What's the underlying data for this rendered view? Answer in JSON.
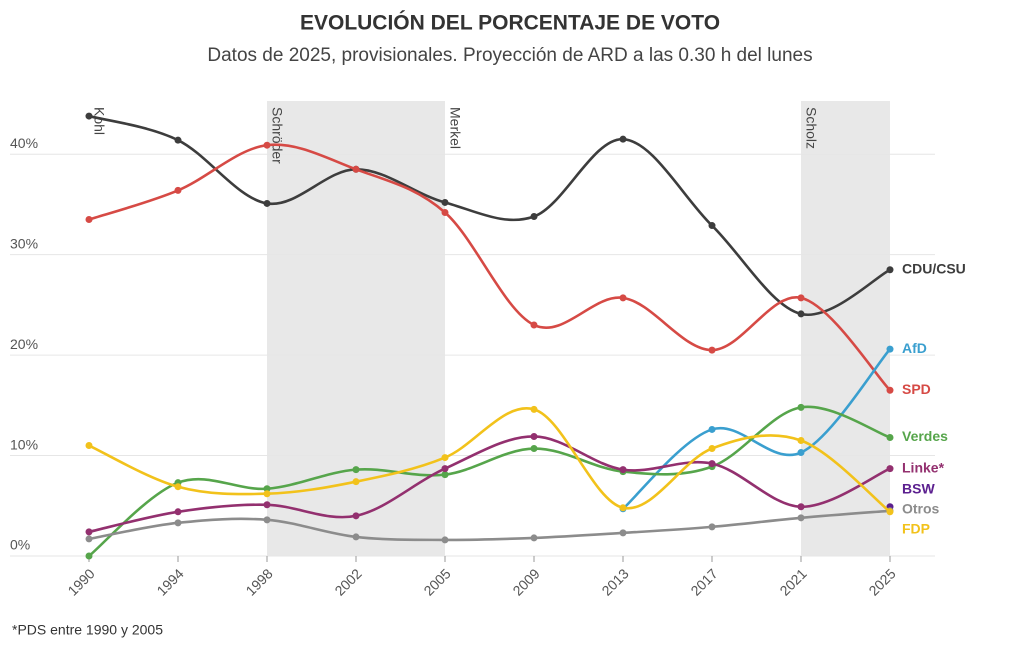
{
  "chart_data": {
    "type": "line",
    "title": "EVOLUCIÓN DEL PORCENTAJE DE VOTO",
    "subtitle": "Datos de 2025, provisionales. Proyección de ARD a las 0.30 h del lunes",
    "footnote": "*PDS entre 1990 y 2005",
    "categories": [
      "1990",
      "1994",
      "1998",
      "2002",
      "2005",
      "2009",
      "2013",
      "2017",
      "2021",
      "2025"
    ],
    "ylim": [
      0,
      45.3
    ],
    "yticks": [
      {
        "value": 0,
        "label": "0%"
      },
      {
        "value": 10,
        "label": "10%"
      },
      {
        "value": 20,
        "label": "20%"
      },
      {
        "value": 30,
        "label": "30%"
      },
      {
        "value": 40,
        "label": "40%"
      }
    ],
    "grid": true,
    "periods": [
      {
        "label": "Kohl",
        "start": "1990",
        "end": "1998",
        "shaded": false
      },
      {
        "label": "Schröder",
        "start": "1998",
        "end": "2005",
        "shaded": true
      },
      {
        "label": "Merkel",
        "start": "2005",
        "end": "2021",
        "shaded": false
      },
      {
        "label": "Scholz",
        "start": "2021",
        "end": "2025",
        "shaded": true
      }
    ],
    "series": [
      {
        "name": "CDU/CSU",
        "color": "#3d3d3d",
        "values": [
          43.8,
          41.4,
          35.1,
          38.5,
          35.2,
          33.8,
          41.5,
          32.9,
          24.1,
          28.5
        ]
      },
      {
        "name": "SPD",
        "color": "#d64a45",
        "values": [
          33.5,
          36.4,
          40.9,
          38.5,
          34.2,
          23.0,
          25.7,
          20.5,
          25.7,
          16.5
        ]
      },
      {
        "name": "AfD",
        "color": "#3a9fcf",
        "values": [
          null,
          null,
          null,
          null,
          null,
          null,
          4.7,
          12.6,
          10.3,
          20.6
        ]
      },
      {
        "name": "Verdes",
        "color": "#56a54b",
        "values": [
          0,
          7.3,
          6.7,
          8.6,
          8.1,
          10.7,
          8.4,
          8.9,
          14.8,
          11.8
        ]
      },
      {
        "name": "Linke*",
        "color": "#93306f",
        "values": [
          2.4,
          4.4,
          5.1,
          4.0,
          8.7,
          11.9,
          8.6,
          9.2,
          4.9,
          8.7
        ]
      },
      {
        "name": "BSW",
        "color": "#5b1f8f",
        "values": [
          null,
          null,
          null,
          null,
          null,
          null,
          null,
          null,
          null,
          4.9
        ]
      },
      {
        "name": "Otros",
        "color": "#8c8c8c",
        "values": [
          1.7,
          3.3,
          3.6,
          1.9,
          1.6,
          1.8,
          2.3,
          2.9,
          3.8,
          4.5
        ]
      },
      {
        "name": "FDP",
        "color": "#f2c21b",
        "values": [
          11.0,
          6.9,
          6.2,
          7.4,
          9.8,
          14.6,
          4.8,
          10.7,
          11.5,
          4.4
        ]
      }
    ]
  }
}
